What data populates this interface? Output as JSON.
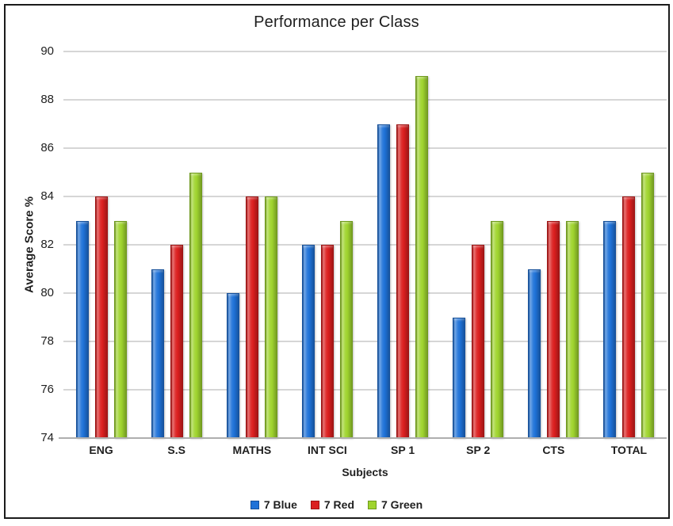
{
  "chart_data": {
    "type": "bar",
    "title": "Performance per Class",
    "xlabel": "Subjects",
    "ylabel": "Average Score %",
    "categories": [
      "ENG",
      "S.S",
      "MATHS",
      "INT SCI",
      "SP 1",
      "SP 2",
      "CTS",
      "TOTAL"
    ],
    "series": [
      {
        "name": "7 Blue",
        "color": "#1f72d8",
        "border": "#15509b",
        "values": [
          83,
          81,
          80,
          82,
          87,
          79,
          81,
          83
        ]
      },
      {
        "name": "7 Red",
        "color": "#db1f1f",
        "border": "#9e1212",
        "values": [
          84,
          82,
          84,
          82,
          87,
          82,
          83,
          84
        ]
      },
      {
        "name": "7 Green",
        "color": "#9fd42e",
        "border": "#6f9a1c",
        "values": [
          83,
          85,
          84,
          83,
          89,
          83,
          83,
          85
        ]
      }
    ],
    "ylim": [
      74,
      90
    ],
    "yticks": [
      74,
      76,
      78,
      80,
      82,
      84,
      86,
      88,
      90
    ],
    "grid": true,
    "legend_position": "bottom",
    "colors": {
      "gridline": "#d6d6d6",
      "axis_line": "#aeaeae",
      "text": "#1f1f1f",
      "frame_border": "#1b1b1b",
      "background": "#ffffff"
    }
  }
}
